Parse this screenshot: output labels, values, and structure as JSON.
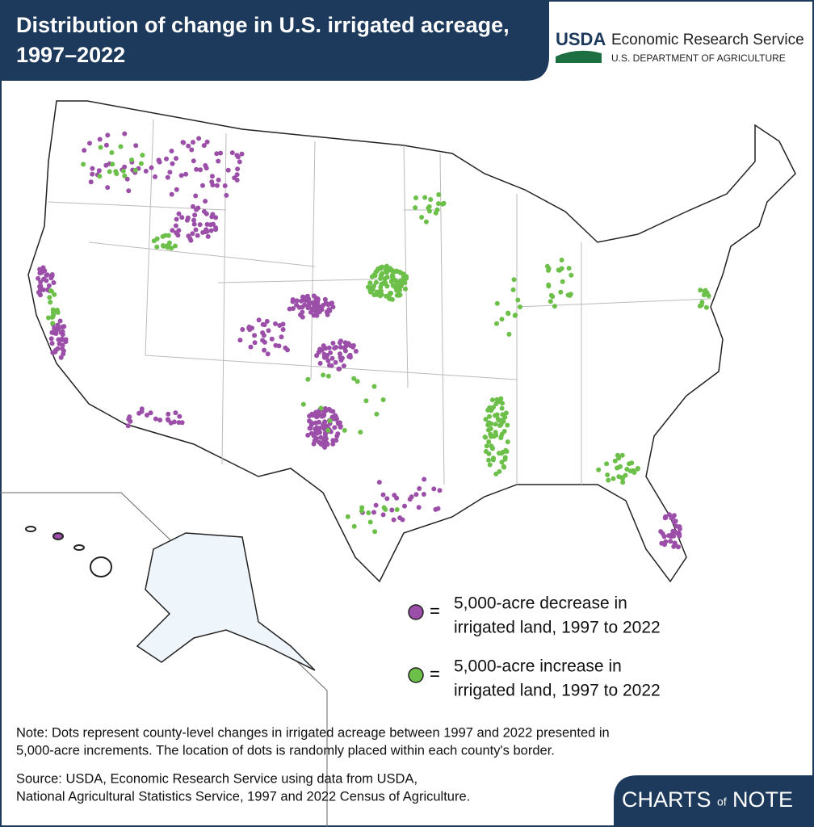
{
  "header": {
    "title_lines": [
      "Distribution of change in U.S. irrigated acreage,",
      "1997–2022"
    ],
    "logo": {
      "mark": "USDA",
      "name": "Economic Research Service",
      "department": "U.S. DEPARTMENT OF AGRICULTURE"
    }
  },
  "legend": {
    "items": [
      {
        "symbol": "=",
        "lines": [
          "5,000-acre decrease in",
          "irrigated land, 1997 to 2022"
        ],
        "color": "#9b4fa8"
      },
      {
        "symbol": "=",
        "lines": [
          "5,000-acre increase in",
          "irrigated land, 1997 to 2022"
        ],
        "color": "#6cc04a"
      }
    ]
  },
  "note": [
    "Note: Dots represent county-level changes in irrigated acreage between 1997 and 2022 presented in",
    "5,000-acre increments. The location of dots is randomly placed within each county's border."
  ],
  "source": [
    "Source: USDA, Economic Research Service using data from USDA,",
    "National Agricultural Statistics Service, 1997 and 2022 Census of Agriculture."
  ],
  "brand": {
    "first": "CHARTS",
    "middle": "of",
    "last": "NOTE"
  }
}
